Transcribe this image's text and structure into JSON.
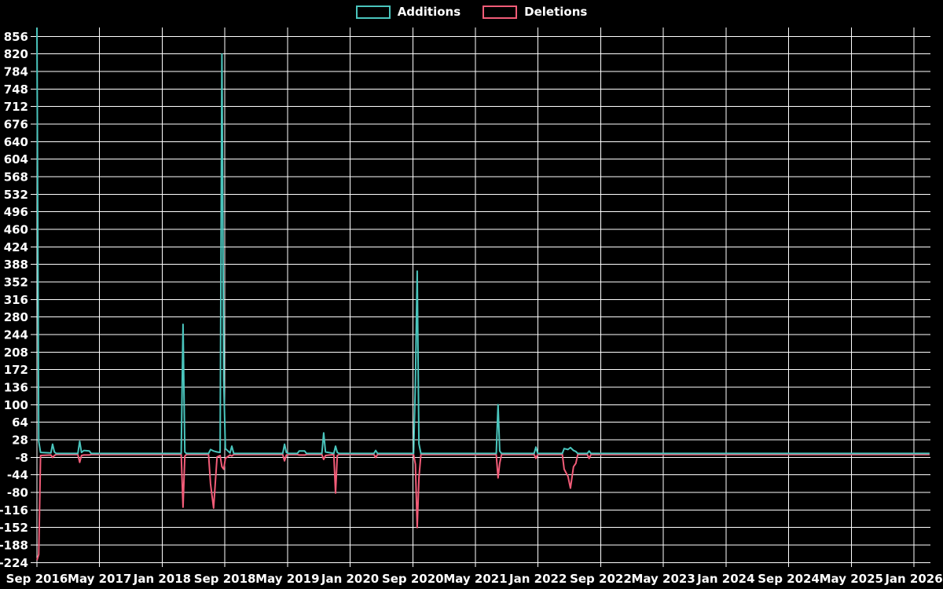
{
  "legend": {
    "items": [
      {
        "label": "Additions",
        "color": "#4ac5bd"
      },
      {
        "label": "Deletions",
        "color": "#f25c78"
      }
    ]
  },
  "chart_data": {
    "type": "line",
    "title": "",
    "legend_position": "top-center",
    "background": "#000000",
    "grid_color": "#ffffff",
    "text_color": "#ffffff",
    "x_axis": {
      "tick_labels": [
        "Sep 2016",
        "May 2017",
        "Jan 2018",
        "Sep 2018",
        "May 2019",
        "Jan 2020",
        "Sep 2020",
        "May 2021",
        "Jan 2022",
        "Sep 2022",
        "May 2023",
        "Jan 2024",
        "Sep 2024",
        "May 2025",
        "Jan 2026"
      ],
      "tick_interval_months": 8,
      "start": "2016-09",
      "visible_end": "2026-03"
    },
    "y_axis": {
      "tick_labels": [
        856,
        820,
        784,
        748,
        712,
        676,
        640,
        604,
        568,
        532,
        496,
        460,
        424,
        388,
        352,
        316,
        280,
        244,
        208,
        172,
        136,
        100,
        64,
        28,
        -8,
        -44,
        -80,
        -116,
        -152,
        -188,
        -224
      ],
      "tick_step": 36,
      "range": [
        -234,
        874
      ]
    },
    "series": [
      {
        "name": "Additions",
        "color": "#4ac5bd"
      },
      {
        "name": "Deletions",
        "color": "#f25c78"
      }
    ],
    "points_format": [
      "date",
      "additions",
      "deletions"
    ],
    "points": [
      [
        "2016-09-01",
        874,
        -217
      ],
      [
        "2016-09-08",
        25,
        -205
      ],
      [
        "2016-09-15",
        2,
        -2
      ],
      [
        "2016-10-25",
        1,
        -1
      ],
      [
        "2016-11-01",
        19,
        -6
      ],
      [
        "2016-11-08",
        3,
        -2
      ],
      [
        "2016-11-15",
        0,
        0
      ],
      [
        "2017-02-08",
        0,
        0
      ],
      [
        "2017-02-15",
        25,
        -16
      ],
      [
        "2017-02-22",
        2,
        -2
      ],
      [
        "2017-03-01",
        6,
        -1
      ],
      [
        "2017-03-22",
        5,
        -1
      ],
      [
        "2017-03-29",
        0,
        0
      ],
      [
        "2018-03-14",
        0,
        0
      ],
      [
        "2018-03-21",
        265,
        -108
      ],
      [
        "2018-03-28",
        3,
        -3
      ],
      [
        "2018-04-04",
        0,
        0
      ],
      [
        "2018-06-29",
        0,
        0
      ],
      [
        "2018-07-06",
        8,
        -60
      ],
      [
        "2018-07-18",
        5,
        -110
      ],
      [
        "2018-08-01",
        3,
        -5
      ],
      [
        "2018-08-13",
        2,
        -2
      ],
      [
        "2018-08-20",
        820,
        -25
      ],
      [
        "2018-08-27",
        150,
        -30
      ],
      [
        "2018-09-03",
        10,
        -8
      ],
      [
        "2018-09-21",
        1,
        -1
      ],
      [
        "2018-09-28",
        15,
        -3
      ],
      [
        "2018-10-05",
        0,
        0
      ],
      [
        "2019-04-13",
        0,
        0
      ],
      [
        "2019-04-20",
        19,
        -13
      ],
      [
        "2019-04-27",
        2,
        -1
      ],
      [
        "2019-05-04",
        0,
        0
      ],
      [
        "2019-06-09",
        0,
        0
      ],
      [
        "2019-06-16",
        5,
        -1
      ],
      [
        "2019-07-07",
        5,
        -1
      ],
      [
        "2019-07-14",
        0,
        0
      ],
      [
        "2019-09-13",
        0,
        0
      ],
      [
        "2019-09-20",
        42,
        -10
      ],
      [
        "2019-09-27",
        3,
        -2
      ],
      [
        "2019-10-29",
        0,
        0
      ],
      [
        "2019-11-05",
        15,
        -79
      ],
      [
        "2019-11-12",
        2,
        -2
      ],
      [
        "2019-11-19",
        0,
        0
      ],
      [
        "2020-04-02",
        0,
        0
      ],
      [
        "2020-04-09",
        6,
        -6
      ],
      [
        "2020-04-16",
        0,
        0
      ],
      [
        "2020-09-04",
        0,
        0
      ],
      [
        "2020-09-11",
        145,
        -20
      ],
      [
        "2020-09-18",
        374,
        -150
      ],
      [
        "2020-09-25",
        20,
        -48
      ],
      [
        "2020-10-02",
        0,
        0
      ],
      [
        "2021-07-21",
        0,
        0
      ],
      [
        "2021-07-28",
        100,
        -48
      ],
      [
        "2021-08-04",
        5,
        -18
      ],
      [
        "2021-08-11",
        0,
        0
      ],
      [
        "2021-12-16",
        0,
        0
      ],
      [
        "2021-12-23",
        13,
        -8
      ],
      [
        "2021-12-30",
        0,
        0
      ],
      [
        "2022-04-04",
        0,
        0
      ],
      [
        "2022-04-11",
        10,
        -30
      ],
      [
        "2022-04-26",
        8,
        -45
      ],
      [
        "2022-05-05",
        12,
        -69
      ],
      [
        "2022-05-17",
        6,
        -25
      ],
      [
        "2022-05-26",
        4,
        -18
      ],
      [
        "2022-06-03",
        0,
        0
      ],
      [
        "2022-07-10",
        0,
        0
      ],
      [
        "2022-07-17",
        5,
        -8
      ],
      [
        "2022-07-24",
        0,
        0
      ],
      [
        "2026-03-01",
        0,
        0
      ]
    ]
  }
}
